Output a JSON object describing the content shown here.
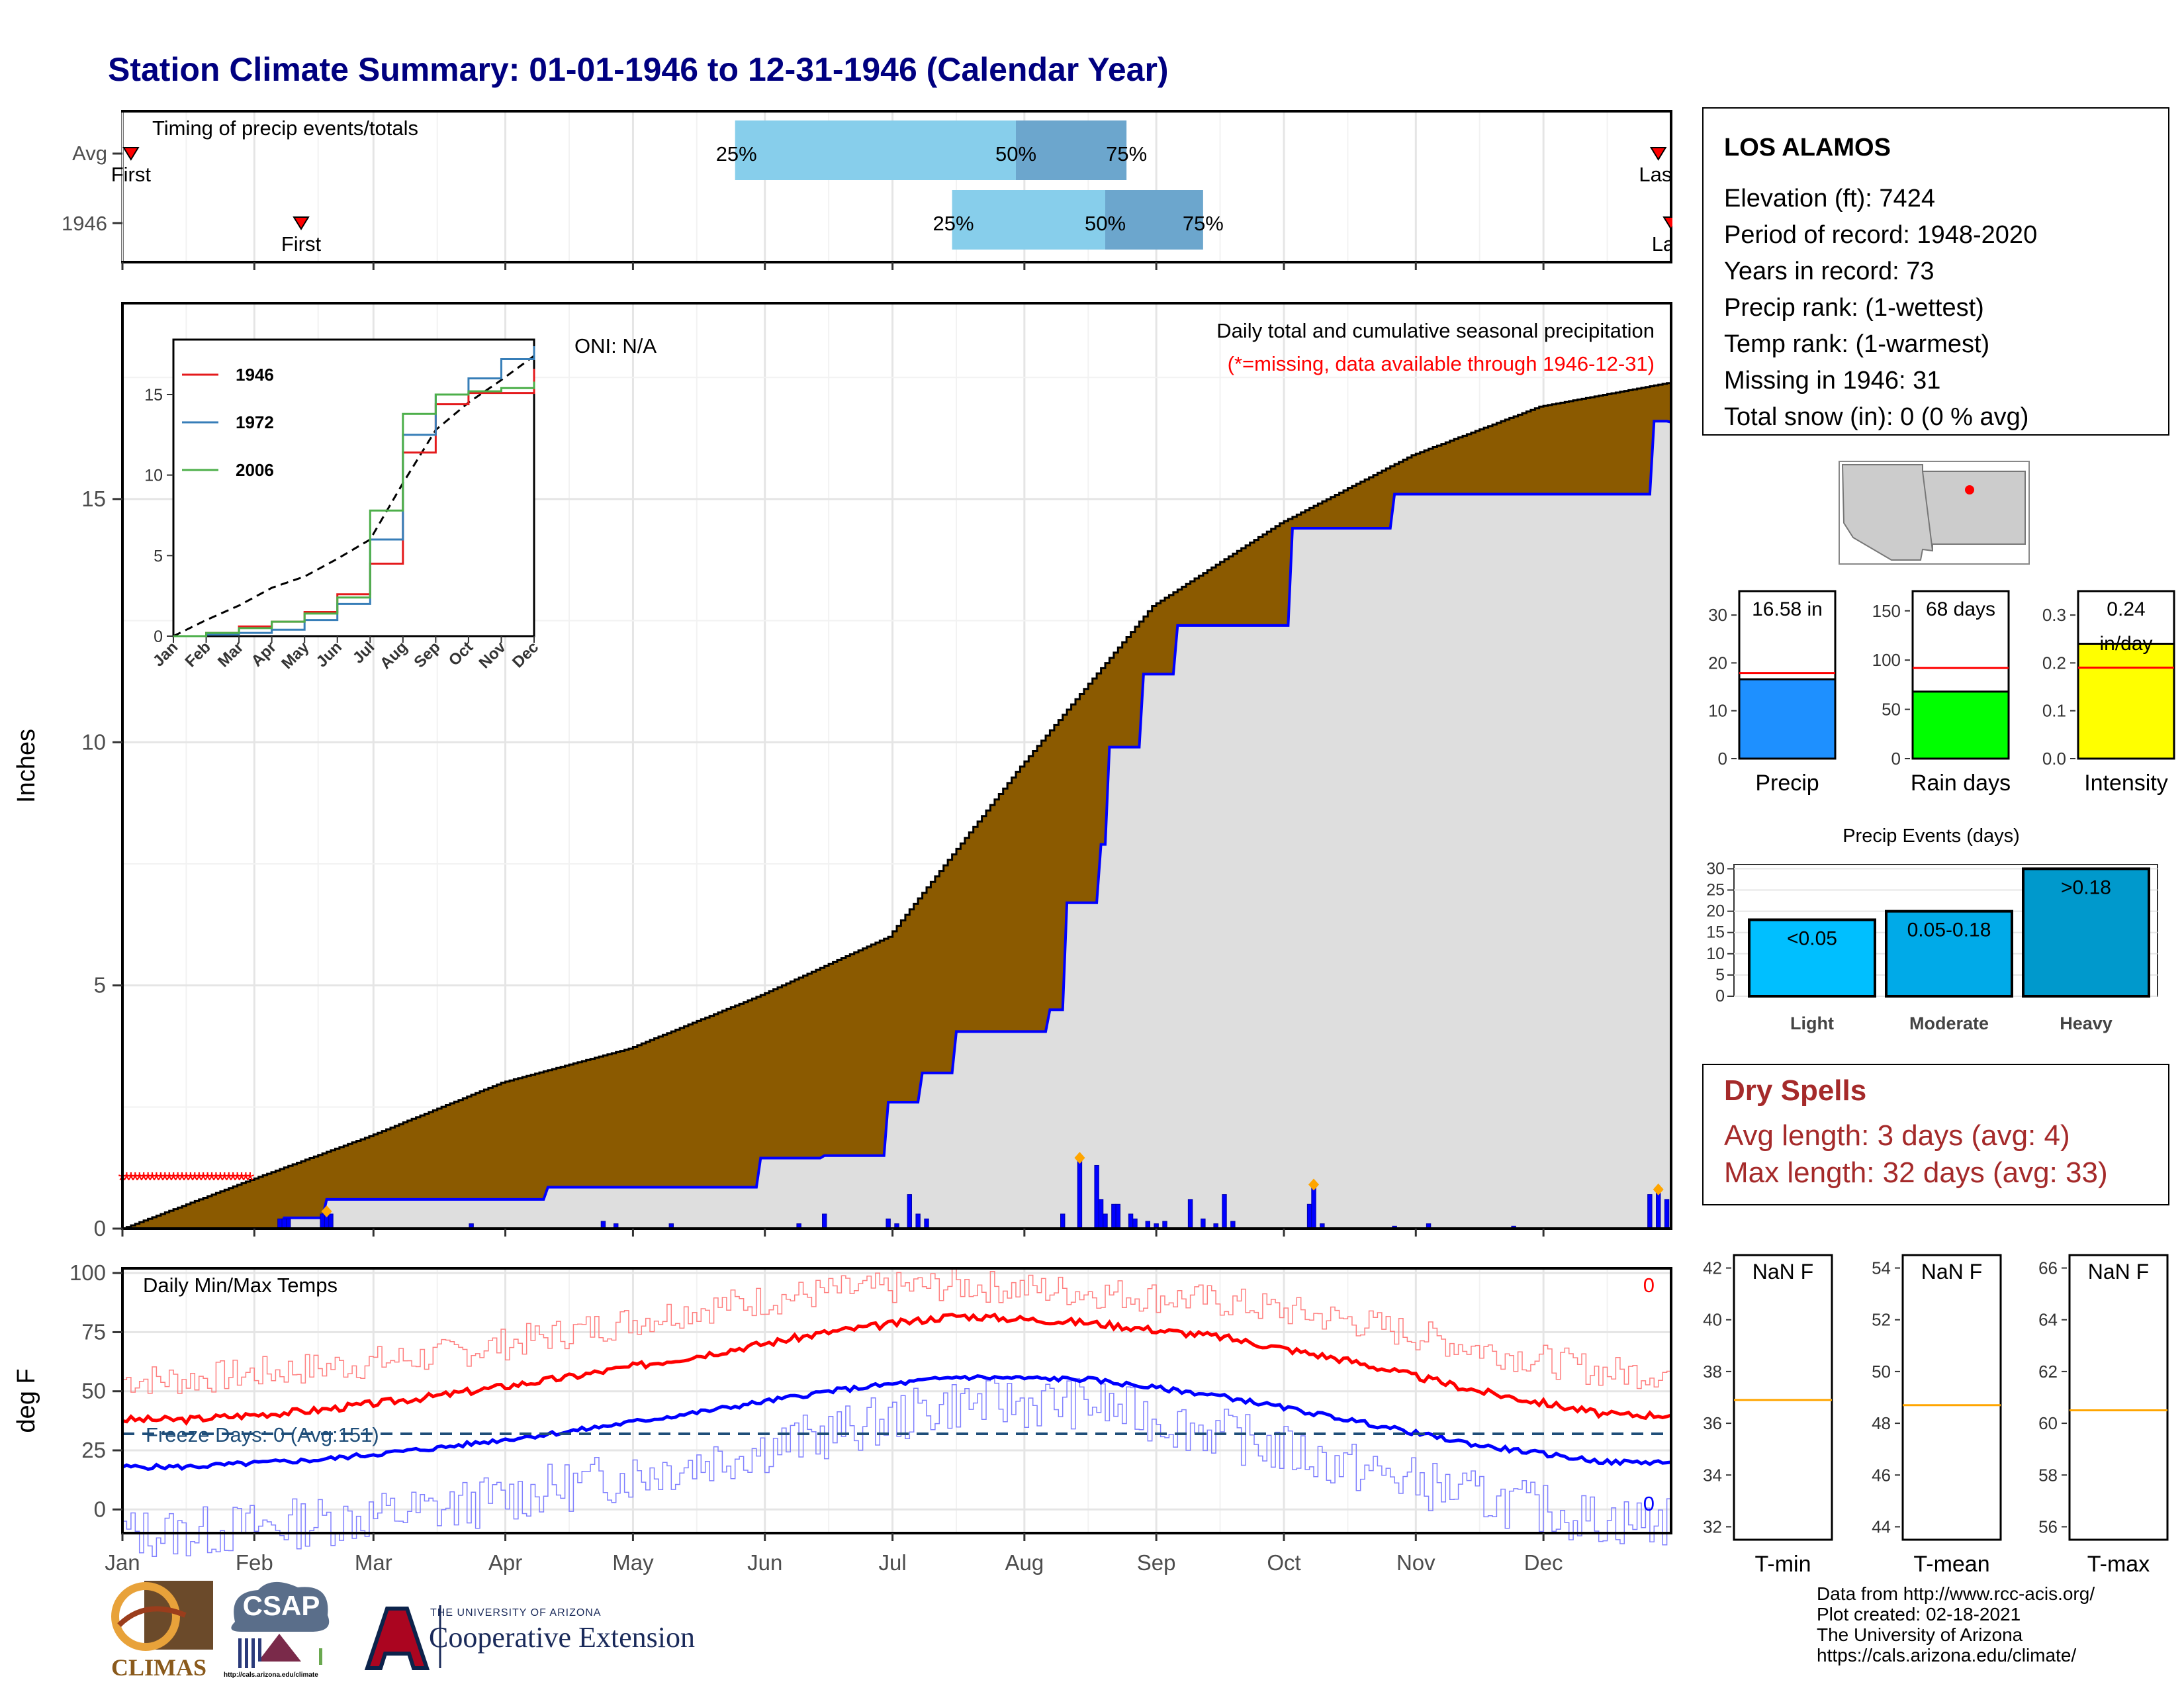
{
  "title": "Station Climate Summary: 01-01-1946 to 12-31-1946 (Calendar Year)",
  "station": {
    "name": "LOS ALAMOS",
    "lines": [
      "Elevation (ft): 7424",
      "Period of record: 1948-2020",
      "Years in record: 73",
      "Precip rank:  (1-wettest)",
      "Temp rank:  (1-warmest)",
      "Missing in 1946: 31",
      "Total snow (in): 0 (0 % avg)"
    ]
  },
  "months": [
    "Jan",
    "Feb",
    "Mar",
    "Apr",
    "May",
    "Jun",
    "Jul",
    "Aug",
    "Sep",
    "Oct",
    "Nov",
    "Dec"
  ],
  "colors": {
    "title": "#000080",
    "cumulative_avg_fill": "#8B5A00",
    "observed_fill": "#DEDEDE",
    "observed_line": "#0000FF",
    "daily_bars": "#0000FF",
    "missing_marker": "#FF0000",
    "max_temp": "#FF0000",
    "min_temp": "#0000FF",
    "freeze_line": "#1F4E79",
    "q25_50": "#87CEEB",
    "q50_75": "#6CA6CD",
    "precip_bar": "#1E90FF",
    "raindays_bar": "#00FF00",
    "intensity_bar": "#FFFF00",
    "events_light": "#00BFFF",
    "events_moderate": "#00AAE8",
    "events_heavy": "#0099CC",
    "avg_line": "#FF0000",
    "temp_avg_line": "#FFA500",
    "dry_spells": "#A52A2A"
  },
  "timing": {
    "title": "Timing of precip events/totals",
    "rows": [
      {
        "label": "Avg",
        "first_label": "First",
        "last_label": "Last",
        "first": "Jan 3",
        "last": "Dec 28",
        "q25": "May 25",
        "q50": "Jul 30",
        "q75": "Aug 25"
      },
      {
        "label": "1946",
        "first_label": "First",
        "last_label": "Last",
        "first": "Feb 12",
        "last": "Dec 31",
        "q25": "Jul 15",
        "q50": "Aug 20",
        "q75": "Sep 12"
      }
    ],
    "q25_label": "25%",
    "q50_label": "50%",
    "q75_label": "75%"
  },
  "precip_panel": {
    "ylabel": "Inches",
    "note1": "Daily total and cumulative seasonal precipitation",
    "note2": "(*=missing, data available through 1946-12-31)",
    "oni": "ONI: N/A",
    "yticks": [
      "0",
      "5",
      "10",
      "15"
    ]
  },
  "inset": {
    "yticks": [
      "0",
      "5",
      "10",
      "15"
    ],
    "legend": [
      "1946",
      "1972",
      "2006"
    ],
    "legend_colors": [
      "#E41A1C",
      "#377EB8",
      "#4DAF4A"
    ]
  },
  "temp_panel": {
    "ylabel": "deg F",
    "title": "Daily Min/Max Temps",
    "freeze_label": "Freeze Days: 0 (Avg:151)",
    "count_top": "0",
    "count_bottom": "0",
    "yticks": [
      "0",
      "25",
      "50",
      "75",
      "100"
    ]
  },
  "summary_bars": [
    {
      "label": "Precip",
      "value_label": "16.58 in",
      "yticks": [
        "0",
        "10",
        "20",
        "30"
      ]
    },
    {
      "label": "Rain days",
      "value_label": "68 days",
      "yticks": [
        "0",
        "50",
        "100",
        "150"
      ]
    },
    {
      "label": "Intensity",
      "value_label": "0.24 in/day",
      "yticks": [
        "0.0",
        "0.1",
        "0.2",
        "0.3"
      ]
    }
  ],
  "events": {
    "title": "Precip Events (days)",
    "categories": [
      "Light",
      "Moderate",
      "Heavy"
    ],
    "bar_labels": [
      "<0.05",
      "0.05-0.18",
      ">0.18"
    ],
    "yticks": [
      "0",
      "5",
      "10",
      "15",
      "20",
      "25",
      "30"
    ]
  },
  "dry_spells": {
    "title": "Dry Spells",
    "avg_line": "Avg length: 3 days (avg: 4)",
    "max_line": "Max length: 32 days (avg: 33)"
  },
  "temp_boxes": [
    {
      "label": "T-min",
      "value": "NaN F",
      "yticks": [
        "32",
        "34",
        "36",
        "38",
        "40",
        "42"
      ]
    },
    {
      "label": "T-mean",
      "value": "NaN F",
      "yticks": [
        "44",
        "46",
        "48",
        "50",
        "52",
        "54"
      ]
    },
    {
      "label": "T-max",
      "value": "NaN F",
      "yticks": [
        "56",
        "58",
        "60",
        "62",
        "64",
        "66"
      ]
    }
  ],
  "credits": [
    "Data from http://www.rcc-acis.org/",
    "Plot created: 02-18-2021",
    "The University of Arizona",
    "https://cals.arizona.edu/climate/"
  ],
  "logos": {
    "climas": "CLIMAS",
    "csap": "CSAP",
    "csap_url": "http://cals.arizona.edu/climate",
    "coop_small": "THE UNIVERSITY OF ARIZONA",
    "coop_big": "Cooperative Extension"
  },
  "chart_data": [
    {
      "type": "area",
      "name": "cumulative_precip",
      "x_unit": "day of year",
      "xlim": [
        1,
        365
      ],
      "ylim": [
        0,
        19
      ],
      "avg_cumulative": {
        "x": [
          1,
          31,
          59,
          90,
          120,
          151,
          181,
          212,
          243,
          273,
          304,
          334,
          365
        ],
        "y": [
          0.0,
          1.0,
          1.9,
          3.0,
          3.7,
          4.8,
          6.0,
          9.5,
          12.8,
          14.5,
          15.9,
          16.9,
          17.4
        ]
      },
      "observed_cumulative": {
        "x": [
          1,
          38,
          39,
          48,
          49,
          100,
          101,
          150,
          151,
          165,
          166,
          180,
          181,
          188,
          189,
          196,
          197,
          218,
          219,
          222,
          223,
          230,
          231,
          232,
          233,
          240,
          241,
          248,
          249,
          275,
          276,
          299,
          300,
          360,
          361,
          364,
          365
        ],
        "y": [
          0.0,
          0.0,
          0.22,
          0.22,
          0.6,
          0.6,
          0.85,
          0.85,
          1.45,
          1.45,
          1.5,
          1.5,
          2.6,
          2.6,
          3.2,
          3.2,
          4.05,
          4.05,
          4.5,
          4.5,
          6.7,
          6.7,
          7.9,
          7.9,
          9.9,
          9.9,
          11.4,
          11.4,
          12.4,
          12.4,
          14.4,
          14.4,
          15.1,
          15.1,
          16.6,
          16.6,
          16.58
        ]
      },
      "daily": {
        "x": [
          38,
          39,
          40,
          48,
          49,
          50,
          83,
          114,
          117,
          130,
          160,
          166,
          181,
          183,
          186,
          188,
          190,
          222,
          226,
          230,
          231,
          232,
          234,
          235,
          238,
          239,
          242,
          244,
          246,
          252,
          255,
          258,
          260,
          262,
          280,
          281,
          283,
          300,
          308,
          328,
          360,
          362,
          364
        ],
        "y": [
          0.2,
          0.2,
          0.2,
          0.3,
          0.3,
          0.3,
          0.1,
          0.15,
          0.1,
          0.1,
          0.1,
          0.3,
          0.2,
          0.1,
          0.7,
          0.3,
          0.2,
          0.3,
          1.4,
          1.3,
          0.6,
          0.3,
          0.5,
          0.5,
          0.3,
          0.2,
          0.15,
          0.1,
          0.15,
          0.6,
          0.2,
          0.1,
          0.7,
          0.15,
          0.5,
          0.85,
          0.1,
          0.05,
          0.1,
          0.05,
          0.7,
          0.75,
          0.6
        ]
      },
      "missing_days": [
        1,
        31
      ]
    },
    {
      "type": "line",
      "name": "inset_cumulative_comparison",
      "x": [
        "Jan",
        "Feb",
        "Mar",
        "Apr",
        "May",
        "Jun",
        "Jul",
        "Aug",
        "Sep",
        "Oct",
        "Nov",
        "Dec"
      ],
      "series": [
        {
          "name": "1946",
          "values": [
            0.0,
            0.2,
            0.6,
            0.9,
            1.5,
            2.6,
            4.5,
            11.4,
            14.4,
            15.1,
            15.1,
            16.6
          ]
        },
        {
          "name": "1972",
          "values": [
            0.0,
            0.1,
            0.2,
            0.4,
            1.0,
            2.0,
            6.0,
            12.5,
            15.0,
            16.0,
            17.2,
            18.0
          ]
        },
        {
          "name": "2006",
          "values": [
            0.0,
            0.2,
            0.5,
            0.9,
            1.4,
            2.4,
            7.8,
            13.8,
            15.0,
            15.2,
            15.4,
            15.8
          ]
        }
      ],
      "avg": [
        0.0,
        1.0,
        1.9,
        3.0,
        3.7,
        4.8,
        6.0,
        9.5,
        12.8,
        14.5,
        15.9,
        17.4
      ],
      "ylim": [
        0,
        18
      ]
    },
    {
      "type": "line",
      "name": "daily_temps",
      "x": [
        "Jan",
        "Feb",
        "Mar",
        "Apr",
        "May",
        "Jun",
        "Jul",
        "Aug",
        "Sep",
        "Oct",
        "Nov",
        "Dec"
      ],
      "series": [
        {
          "name": "avg max",
          "values": [
            38,
            42,
            48,
            56,
            65,
            75,
            82,
            79,
            73,
            63,
            50,
            40
          ]
        },
        {
          "name": "avg min",
          "values": [
            18,
            21,
            26,
            33,
            41,
            50,
            56,
            55,
            48,
            38,
            27,
            20
          ]
        },
        {
          "name": "record max",
          "values": [
            55,
            60,
            65,
            75,
            85,
            92,
            95,
            92,
            88,
            80,
            68,
            58
          ]
        },
        {
          "name": "record min",
          "values": [
            -10,
            -5,
            0,
            10,
            20,
            32,
            45,
            45,
            32,
            18,
            5,
            -5
          ]
        }
      ],
      "freeze_threshold": 32,
      "ylim": [
        -10,
        102
      ]
    },
    {
      "type": "bar",
      "name": "season_totals",
      "categories": [
        "Precip",
        "Rain days",
        "Intensity"
      ],
      "values": [
        16.58,
        68,
        0.24
      ],
      "avg": [
        17.9,
        92,
        0.19
      ]
    },
    {
      "type": "bar",
      "name": "precip_events",
      "categories": [
        "Light",
        "Moderate",
        "Heavy"
      ],
      "values": [
        18,
        20,
        30
      ],
      "ylim": [
        0,
        31
      ]
    }
  ]
}
